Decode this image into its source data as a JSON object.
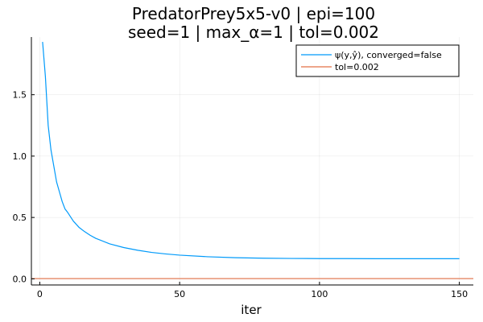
{
  "chart_data": {
    "type": "line",
    "title_line1": "PredatorPrey5x5-v0 | epi=100",
    "title_line2": "seed=1 | max_α=1 | tol=0.002",
    "xlabel": "iter",
    "ylabel": "",
    "xlim": [
      -3,
      155
    ],
    "ylim": [
      -0.05,
      1.97
    ],
    "xticks": [
      0,
      50,
      100,
      150
    ],
    "xtick_labels": [
      "0",
      "50",
      "100",
      "150"
    ],
    "yticks": [
      0.0,
      0.5,
      1.0,
      1.5
    ],
    "ytick_labels": [
      "0.0",
      "0.5",
      "1.0",
      "1.5"
    ],
    "grid": true,
    "legend_position": "top-right",
    "series": [
      {
        "name": "ψ(y,ŷ), converged=false",
        "color": "#009AFA",
        "x": [
          1,
          2,
          3,
          4,
          5,
          6,
          7,
          8,
          9,
          10,
          12,
          14,
          16,
          18,
          20,
          25,
          30,
          35,
          40,
          45,
          50,
          60,
          70,
          80,
          90,
          100,
          110,
          120,
          130,
          140,
          150
        ],
        "y": [
          1.93,
          1.65,
          1.25,
          1.05,
          0.92,
          0.79,
          0.71,
          0.63,
          0.57,
          0.54,
          0.47,
          0.42,
          0.385,
          0.355,
          0.33,
          0.285,
          0.255,
          0.233,
          0.215,
          0.203,
          0.193,
          0.18,
          0.172,
          0.168,
          0.166,
          0.165,
          0.165,
          0.164,
          0.164,
          0.164,
          0.164
        ]
      },
      {
        "name": "tol=0.002",
        "color": "#E26F46",
        "x": [
          -3,
          155
        ],
        "y": [
          0.002,
          0.002
        ]
      }
    ]
  }
}
